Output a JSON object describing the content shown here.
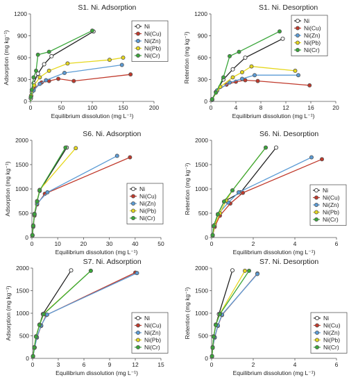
{
  "colors": {
    "Ni": "#222222",
    "Ni(Cu)": "#c0392b",
    "Ni(Zn)": "#5b9bd5",
    "Ni(Pb)": "#e6d71c",
    "Ni(Cr)": "#3aa63a"
  },
  "chart_data": [
    {
      "type": "scatter",
      "title": "S1. Ni. Adsorption",
      "xlabel": "Equilibrium dissolution (mg L⁻¹)",
      "ylabel": "Adsorption (mg kg⁻¹)",
      "xlim": [
        0,
        200
      ],
      "ylim": [
        0,
        1200
      ],
      "xticks": [
        0,
        50,
        100,
        150,
        200
      ],
      "yticks": [
        0,
        300,
        600,
        900,
        1200
      ],
      "xtick_labels": [
        "0",
        "50",
        "100",
        "150",
        "200"
      ],
      "ytick_labels": [
        "0",
        "300",
        "600",
        "900",
        "1200"
      ],
      "legend": {
        "position": "top-right",
        "entries": [
          "Ni",
          "Ni(Cu)",
          "Ni(Zn)",
          "Ni(Pb)",
          "Ni(Cr)"
        ]
      },
      "series": [
        {
          "name": "Ni",
          "points": [
            [
              0.5,
              40
            ],
            [
              2,
              130
            ],
            [
              5,
              250
            ],
            [
              12,
              380
            ],
            [
              22,
              510
            ],
            [
              34,
              620
            ],
            [
              102,
              960
            ]
          ]
        },
        {
          "name": "Ni(Cu)",
          "points": [
            [
              1,
              80
            ],
            [
              5,
              170
            ],
            [
              18,
              260
            ],
            [
              30,
              280
            ],
            [
              45,
              310
            ],
            [
              70,
              280
            ],
            [
              162,
              370
            ]
          ]
        },
        {
          "name": "Ni(Zn)",
          "points": [
            [
              1,
              70
            ],
            [
              5,
              150
            ],
            [
              15,
              240
            ],
            [
              25,
              290
            ],
            [
              55,
              390
            ],
            [
              148,
              500
            ]
          ]
        },
        {
          "name": "Ni(Pb)",
          "points": [
            [
              1,
              80
            ],
            [
              6,
              220
            ],
            [
              15,
              330
            ],
            [
              30,
              420
            ],
            [
              60,
              520
            ],
            [
              128,
              570
            ],
            [
              150,
              600
            ]
          ]
        },
        {
          "name": "Ni(Cr)",
          "points": [
            [
              0.5,
              60
            ],
            [
              2,
              160
            ],
            [
              5,
              330
            ],
            [
              9,
              420
            ],
            [
              12,
              640
            ],
            [
              30,
              680
            ],
            [
              100,
              970
            ]
          ]
        }
      ]
    },
    {
      "type": "scatter",
      "title": "S1. Ni. Desorption",
      "xlabel": "Equilibrium dissolution (mg L⁻¹)",
      "ylabel": "Retention (mg kg⁻¹)",
      "xlim": [
        0,
        20
      ],
      "ylim": [
        0,
        1200
      ],
      "xticks": [
        0,
        4,
        8,
        12,
        16,
        20
      ],
      "yticks": [
        0,
        300,
        600,
        900,
        1200
      ],
      "xtick_labels": [
        "0",
        "4",
        "8",
        "12",
        "16",
        "20"
      ],
      "ytick_labels": [
        "0",
        "300",
        "600",
        "900",
        "1200"
      ],
      "legend": {
        "position": "top-right",
        "entries": [
          "Ni",
          "Ni(Cu)",
          "Ni(Zn)",
          "Ni(Pb)",
          "Ni(Cr)"
        ]
      },
      "series": [
        {
          "name": "Ni",
          "points": [
            [
              0.2,
              30
            ],
            [
              0.8,
              130
            ],
            [
              2,
              300
            ],
            [
              3.5,
              440
            ],
            [
              5.5,
              600
            ],
            [
              11.5,
              860
            ]
          ]
        },
        {
          "name": "Ni(Cu)",
          "points": [
            [
              0.2,
              20
            ],
            [
              1,
              150
            ],
            [
              2.5,
              230
            ],
            [
              4,
              270
            ],
            [
              5.5,
              290
            ],
            [
              7.5,
              280
            ],
            [
              15.8,
              220
            ]
          ]
        },
        {
          "name": "Ni(Zn)",
          "points": [
            [
              0.2,
              20
            ],
            [
              1,
              150
            ],
            [
              3,
              260
            ],
            [
              5,
              310
            ],
            [
              7,
              360
            ],
            [
              14,
              360
            ]
          ]
        },
        {
          "name": "Ni(Pb)",
          "points": [
            [
              0.2,
              30
            ],
            [
              1.5,
              200
            ],
            [
              3.5,
              330
            ],
            [
              5,
              400
            ],
            [
              6.5,
              480
            ],
            [
              13.5,
              420
            ]
          ]
        },
        {
          "name": "Ni(Cr)",
          "points": [
            [
              0.2,
              30
            ],
            [
              0.8,
              120
            ],
            [
              2,
              330
            ],
            [
              3,
              620
            ],
            [
              4.5,
              680
            ],
            [
              11,
              960
            ]
          ]
        }
      ]
    },
    {
      "type": "scatter",
      "title": "S6. Ni. Adsorption",
      "xlabel": "Equilibrium dissolution (mg L⁻¹)",
      "ylabel": "Adsorption (mg kg⁻¹)",
      "xlim": [
        0,
        50
      ],
      "ylim": [
        0,
        2000
      ],
      "xticks": [
        0,
        10,
        20,
        30,
        40,
        50
      ],
      "yticks": [
        0,
        500,
        1000,
        1500,
        2000
      ],
      "xtick_labels": [
        "0",
        "10",
        "20",
        "30",
        "40",
        "50"
      ],
      "ytick_labels": [
        "0",
        "500",
        "1000",
        "1500",
        "2000"
      ],
      "legend": {
        "position": "bottom-right",
        "entries": [
          "Ni",
          "Ni(Cu)",
          "Ni(Zn)",
          "Ni(Pb)",
          "Ni(Cr)"
        ]
      },
      "series": [
        {
          "name": "Ni",
          "points": [
            [
              0.2,
              50
            ],
            [
              0.5,
              240
            ],
            [
              1,
              480
            ],
            [
              2,
              740
            ],
            [
              3,
              960
            ],
            [
              13.5,
              1850
            ]
          ]
        },
        {
          "name": "Ni(Cu)",
          "points": [
            [
              0.2,
              40
            ],
            [
              0.5,
              220
            ],
            [
              1,
              450
            ],
            [
              2,
              680
            ],
            [
              5,
              900
            ],
            [
              38,
              1650
            ]
          ]
        },
        {
          "name": "Ni(Zn)",
          "points": [
            [
              0.2,
              40
            ],
            [
              0.5,
              230
            ],
            [
              1,
              470
            ],
            [
              2,
              700
            ],
            [
              6,
              930
            ],
            [
              33,
              1680
            ]
          ]
        },
        {
          "name": "Ni(Pb)",
          "points": [
            [
              0.2,
              50
            ],
            [
              0.5,
              250
            ],
            [
              1,
              490
            ],
            [
              2,
              750
            ],
            [
              3,
              980
            ],
            [
              17,
              1840
            ]
          ]
        },
        {
          "name": "Ni(Cr)",
          "points": [
            [
              0.2,
              50
            ],
            [
              0.5,
              240
            ],
            [
              1,
              480
            ],
            [
              2,
              740
            ],
            [
              3,
              970
            ],
            [
              13,
              1850
            ]
          ]
        }
      ]
    },
    {
      "type": "scatter",
      "title": "S6. Ni. Desorption",
      "xlabel": "Equilibrium dissolution (mg L⁻¹)",
      "ylabel": "Retention (mg kg⁻¹)",
      "xlim": [
        0,
        6
      ],
      "ylim": [
        0,
        2000
      ],
      "xticks": [
        0,
        2,
        4,
        6
      ],
      "yticks": [
        0,
        500,
        1000,
        1500,
        2000
      ],
      "xtick_labels": [
        "0",
        "2",
        "4",
        "6"
      ],
      "ytick_labels": [
        "0",
        "500",
        "1000",
        "1500",
        "2000"
      ],
      "legend": {
        "position": "bottom-right",
        "entries": [
          "Ni",
          "Ni(Cu)",
          "Ni(Zn)",
          "Ni(Pb)",
          "Ni(Cr)"
        ]
      },
      "series": [
        {
          "name": "Ni",
          "points": [
            [
              0.05,
              50
            ],
            [
              0.1,
              240
            ],
            [
              0.3,
              480
            ],
            [
              0.6,
              740
            ],
            [
              1.4,
              930
            ],
            [
              3.1,
              1850
            ]
          ]
        },
        {
          "name": "Ni(Cu)",
          "points": [
            [
              0.05,
              40
            ],
            [
              0.15,
              220
            ],
            [
              0.4,
              450
            ],
            [
              0.9,
              700
            ],
            [
              1.5,
              920
            ],
            [
              5.3,
              1610
            ]
          ]
        },
        {
          "name": "Ni(Zn)",
          "points": [
            [
              0.05,
              40
            ],
            [
              0.1,
              230
            ],
            [
              0.3,
              470
            ],
            [
              0.8,
              720
            ],
            [
              1.3,
              930
            ],
            [
              4.8,
              1650
            ]
          ]
        },
        {
          "name": "Ni(Pb)",
          "points": [
            [
              0.05,
              50
            ],
            [
              0.15,
              260
            ],
            [
              0.4,
              500
            ],
            [
              0.7,
              760
            ],
            [
              1.0,
              970
            ],
            [
              2.6,
              1850
            ]
          ]
        },
        {
          "name": "Ni(Cr)",
          "points": [
            [
              0.05,
              50
            ],
            [
              0.1,
              240
            ],
            [
              0.3,
              480
            ],
            [
              0.6,
              740
            ],
            [
              1.0,
              970
            ],
            [
              2.6,
              1850
            ]
          ]
        }
      ]
    },
    {
      "type": "scatter",
      "title": "S7. Ni. Adsorption",
      "xlabel": "Equilibrium dissolution (mg L⁻¹)",
      "ylabel": "Adsorption (mg kg⁻¹)",
      "xlim": [
        0,
        15
      ],
      "ylim": [
        0,
        2000
      ],
      "xticks": [
        0,
        3,
        6,
        9,
        12,
        15
      ],
      "yticks": [
        0,
        500,
        1000,
        1500,
        2000
      ],
      "xtick_labels": [
        "0",
        "3",
        "6",
        "9",
        "12",
        "15"
      ],
      "ytick_labels": [
        "0",
        "500",
        "1000",
        "1500",
        "2000"
      ],
      "legend": {
        "position": "bottom-right",
        "entries": [
          "Ni",
          "Ni(Cu)",
          "Ni(Zn)",
          "Ni(Pb)",
          "Ni(Cr)"
        ]
      },
      "series": [
        {
          "name": "Ni",
          "points": [
            [
              0.05,
              50
            ],
            [
              0.2,
              240
            ],
            [
              0.4,
              480
            ],
            [
              0.8,
              740
            ],
            [
              1.2,
              980
            ],
            [
              4.5,
              1950
            ]
          ]
        },
        {
          "name": "Ni(Cu)",
          "points": [
            [
              0.05,
              40
            ],
            [
              0.2,
              230
            ],
            [
              0.5,
              460
            ],
            [
              1.0,
              720
            ],
            [
              1.6,
              960
            ],
            [
              12,
              1900
            ]
          ]
        },
        {
          "name": "Ni(Zn)",
          "points": [
            [
              0.05,
              40
            ],
            [
              0.25,
              240
            ],
            [
              0.5,
              470
            ],
            [
              1.0,
              730
            ],
            [
              1.7,
              970
            ],
            [
              12.2,
              1890
            ]
          ]
        },
        {
          "name": "Ni(Pb)",
          "points": [
            [
              0.05,
              50
            ],
            [
              0.2,
              250
            ],
            [
              0.4,
              490
            ],
            [
              0.8,
              750
            ],
            [
              1.3,
              990
            ],
            [
              6.8,
              1940
            ]
          ]
        },
        {
          "name": "Ni(Cr)",
          "points": [
            [
              0.05,
              50
            ],
            [
              0.2,
              240
            ],
            [
              0.4,
              480
            ],
            [
              0.8,
              740
            ],
            [
              1.3,
              980
            ],
            [
              6.8,
              1940
            ]
          ]
        }
      ]
    },
    {
      "type": "scatter",
      "title": "S7. Ni. Desorption",
      "xlabel": "Equilibrium dissolution (mg L⁻¹)",
      "ylabel": "Retention (mg kg⁻¹)",
      "xlim": [
        0,
        6
      ],
      "ylim": [
        0,
        2000
      ],
      "xticks": [
        0,
        2,
        4,
        6
      ],
      "yticks": [
        0,
        500,
        1000,
        1500,
        2000
      ],
      "xtick_labels": [
        "0",
        "2",
        "4",
        "6"
      ],
      "ytick_labels": [
        "0",
        "500",
        "1000",
        "1500",
        "2000"
      ],
      "legend": {
        "position": "bottom-right",
        "entries": [
          "Ni",
          "Ni(Cu)",
          "Ni(Zn)",
          "Ni(Pb)",
          "Ni(Cr)"
        ]
      },
      "series": [
        {
          "name": "Ni",
          "points": [
            [
              0.02,
              50
            ],
            [
              0.05,
              240
            ],
            [
              0.1,
              480
            ],
            [
              0.2,
              740
            ],
            [
              0.35,
              980
            ],
            [
              1.0,
              1950
            ]
          ]
        },
        {
          "name": "Ni(Cu)",
          "points": [
            [
              0.02,
              40
            ],
            [
              0.05,
              230
            ],
            [
              0.15,
              460
            ],
            [
              0.3,
              720
            ],
            [
              0.5,
              960
            ],
            [
              2.2,
              1880
            ]
          ]
        },
        {
          "name": "Ni(Zn)",
          "points": [
            [
              0.02,
              40
            ],
            [
              0.05,
              240
            ],
            [
              0.15,
              470
            ],
            [
              0.3,
              730
            ],
            [
              0.5,
              970
            ],
            [
              2.2,
              1870
            ]
          ]
        },
        {
          "name": "Ni(Pb)",
          "points": [
            [
              0.02,
              50
            ],
            [
              0.05,
              250
            ],
            [
              0.1,
              490
            ],
            [
              0.2,
              750
            ],
            [
              0.4,
              990
            ],
            [
              1.6,
              1940
            ]
          ]
        },
        {
          "name": "Ni(Cr)",
          "points": [
            [
              0.02,
              50
            ],
            [
              0.05,
              240
            ],
            [
              0.1,
              480
            ],
            [
              0.2,
              740
            ],
            [
              0.4,
              980
            ],
            [
              1.8,
              1940
            ]
          ]
        }
      ]
    }
  ]
}
